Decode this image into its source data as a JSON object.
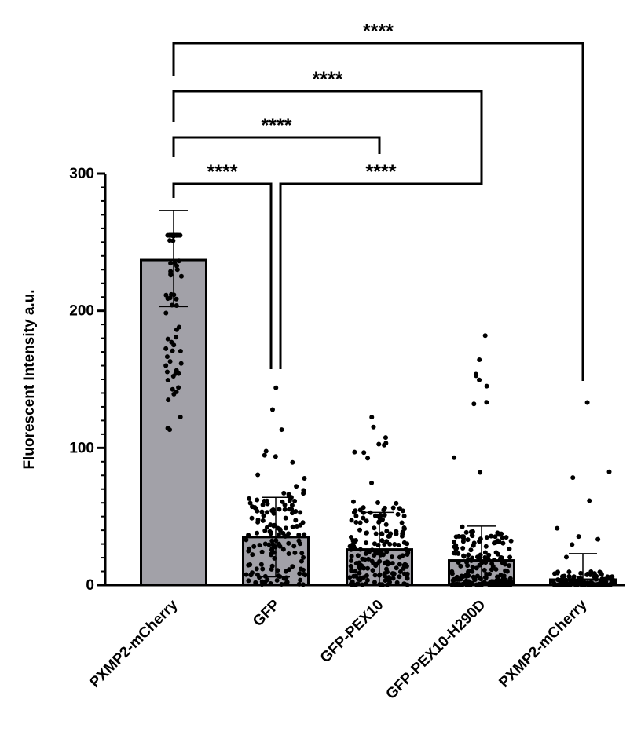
{
  "chart_data": {
    "type": "bar",
    "ylabel": "Fluorescent Intensity a.u.",
    "xlabel": "",
    "ylim": [
      0,
      300
    ],
    "yticks": [
      0,
      100,
      200,
      300
    ],
    "categories": [
      "PXMP2-mCherry",
      "GFP",
      "GFP-PEX10",
      "GFP-PEX10-H290D",
      "PXMP2-mCherry"
    ],
    "values": [
      237,
      35,
      26,
      18,
      4
    ],
    "error_upper": [
      273,
      64,
      53,
      43,
      23
    ],
    "error_lower": [
      203,
      6,
      0,
      0,
      0
    ],
    "bar_color": "#a2a1a8",
    "significance": [
      {
        "from": 0,
        "to": 1,
        "label": "****",
        "level": 1
      },
      {
        "from": 1,
        "to": 3,
        "label": "****",
        "level": 1
      },
      {
        "from": 0,
        "to": 2,
        "label": "****",
        "level": 2
      },
      {
        "from": 0,
        "to": 3,
        "label": "****",
        "level": 3
      },
      {
        "from": 0,
        "to": 4,
        "label": "****",
        "level": 4
      }
    ]
  }
}
